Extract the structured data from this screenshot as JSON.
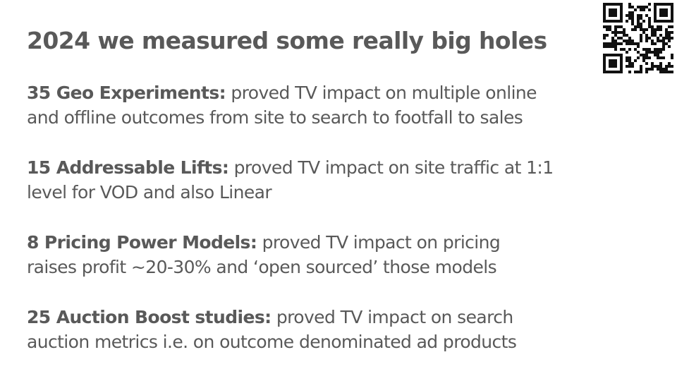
{
  "slide": {
    "title": "2024 we measured some really big holes",
    "items": [
      {
        "lead": "35 Geo Experiments:",
        "line1": " proved TV impact on multiple online",
        "line2": "and offline outcomes from site to search to footfall to sales"
      },
      {
        "lead": "15 Addressable Lifts:",
        "line1": " proved TV impact on site traffic at 1:1",
        "line2": "level for VOD and also Linear"
      },
      {
        "lead": "8 Pricing Power Models:",
        "line1": " proved TV impact on pricing",
        "line2": "raises profit ~20-30% and ‘open sourced’ those models"
      },
      {
        "lead": "25 Auction Boost studies:",
        "line1": " proved TV impact on search",
        "line2": "auction metrics i.e. on outcome denominated ad products"
      }
    ]
  },
  "qr_code": {
    "icon": "qr-code-icon",
    "color": "#111111"
  }
}
